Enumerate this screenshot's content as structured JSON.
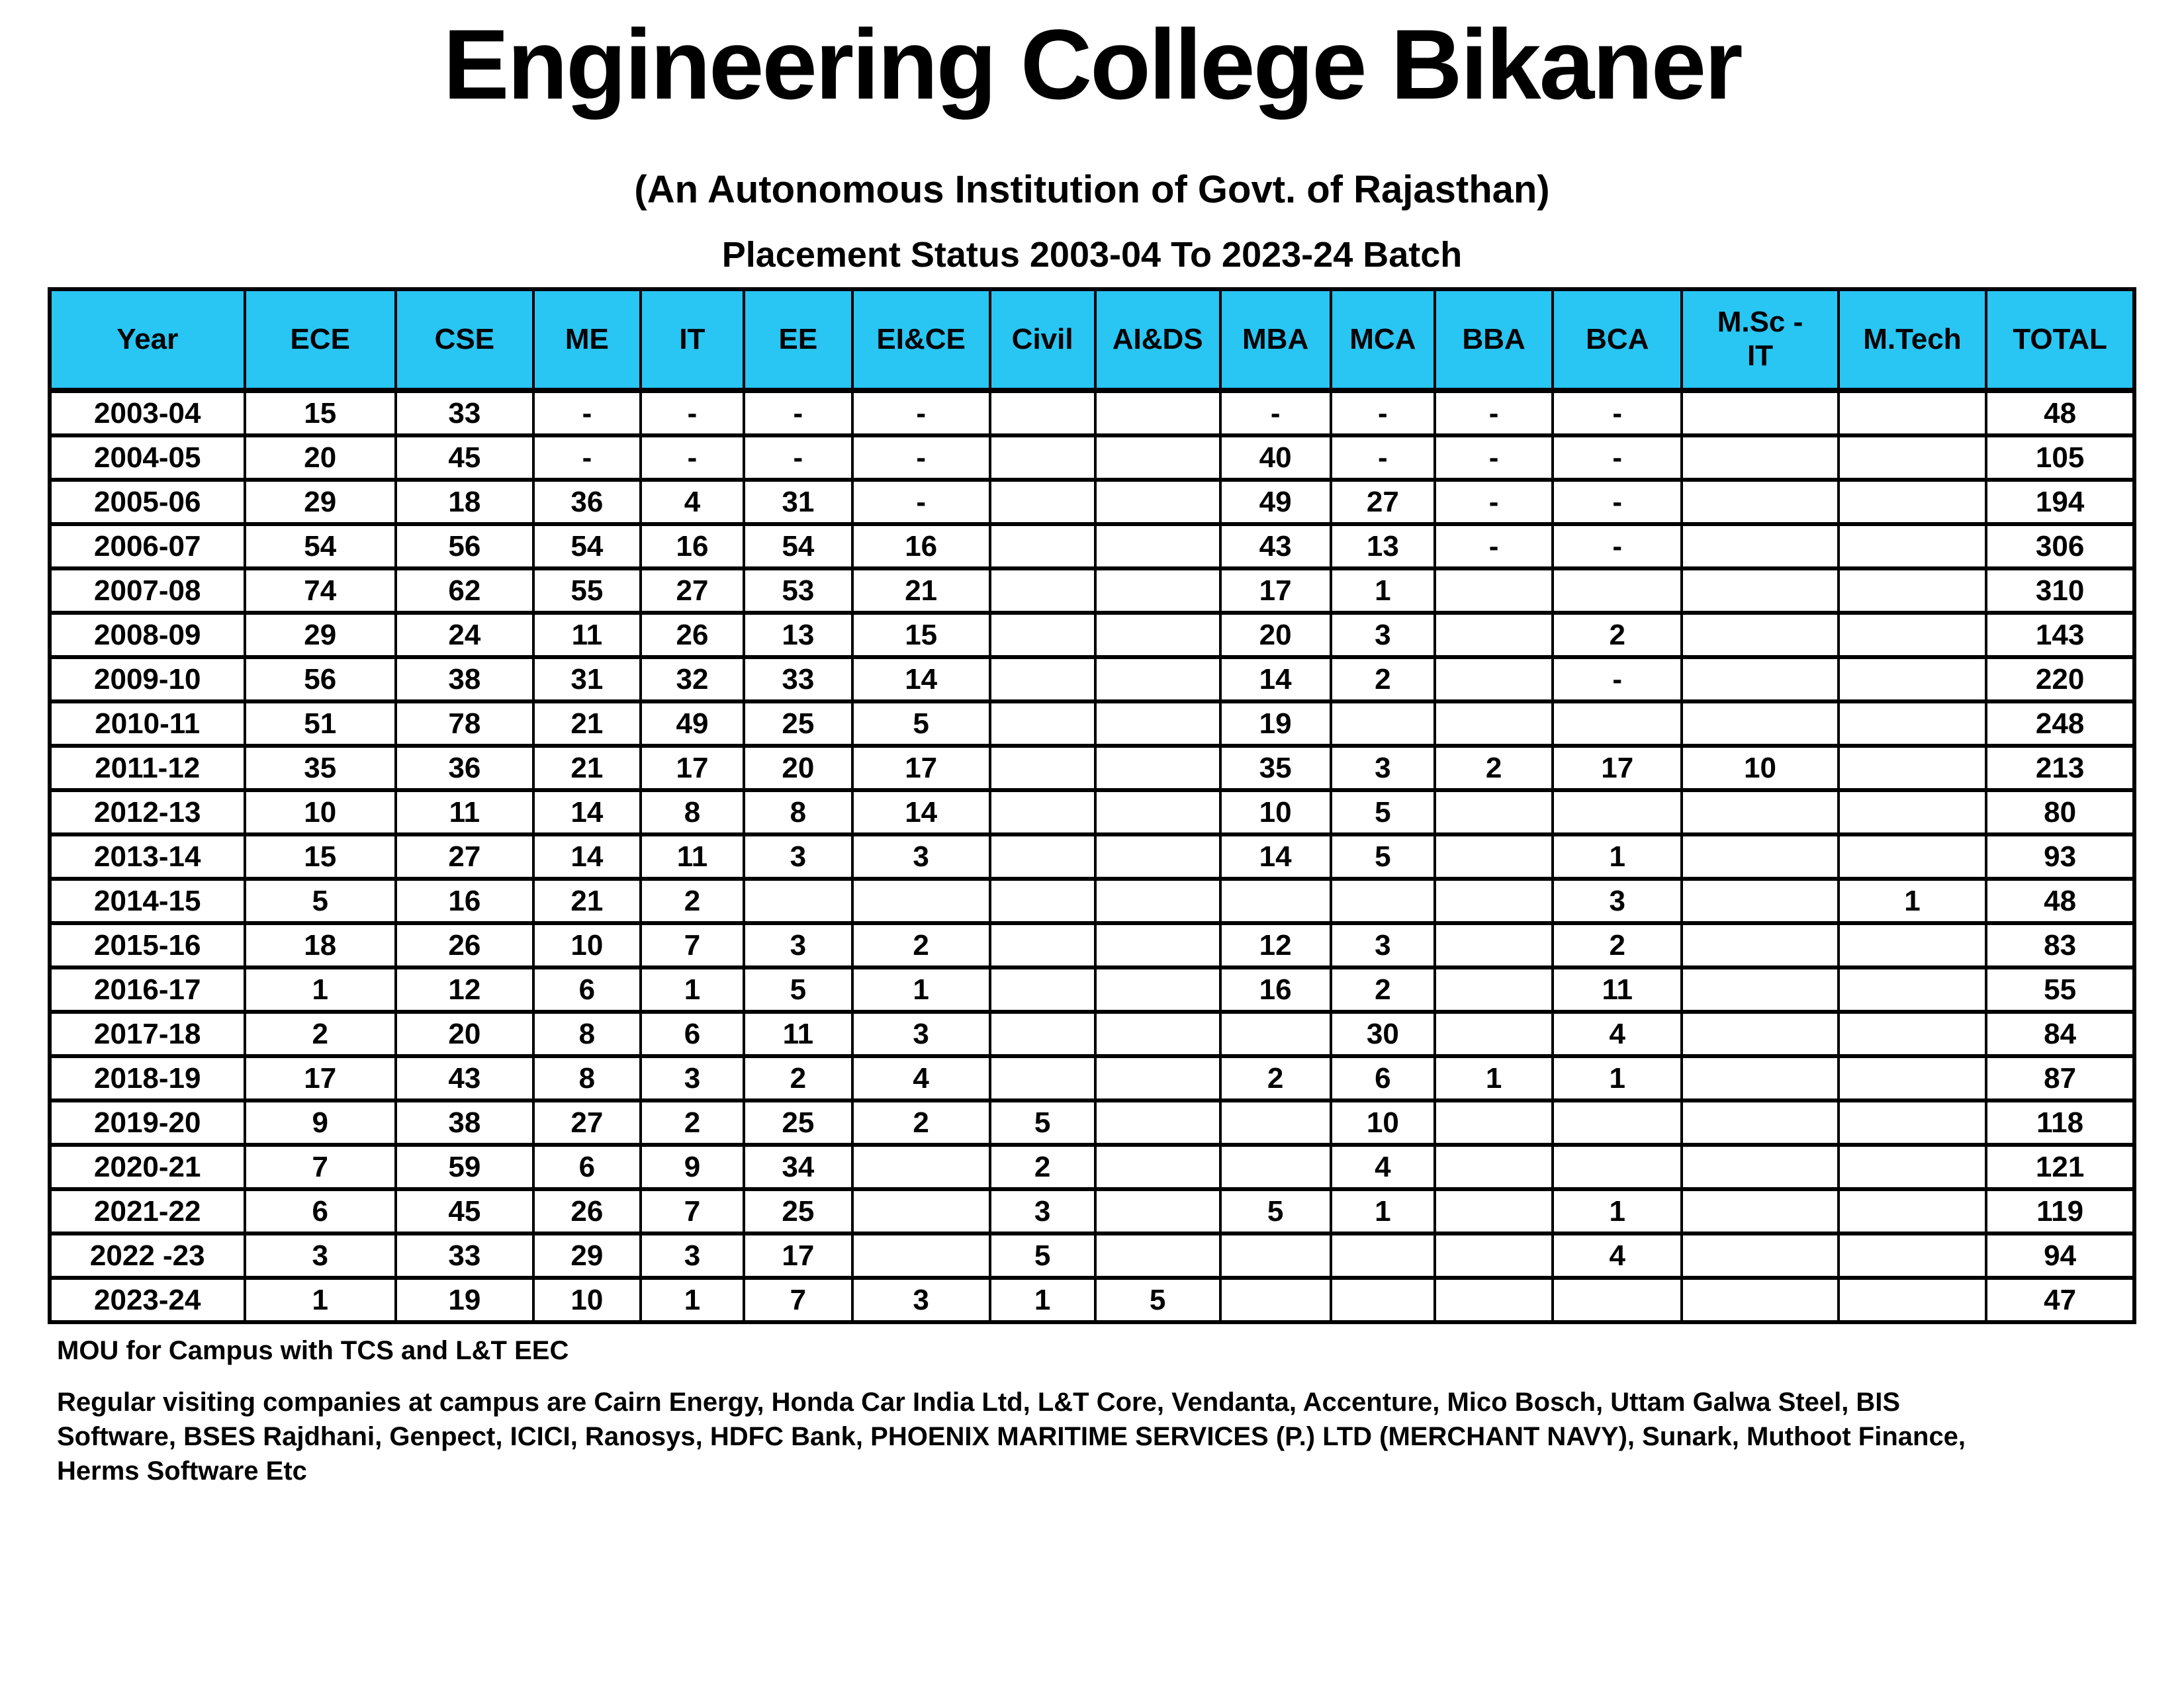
{
  "title": "Engineering College Bikaner",
  "subtitle": "(An Autonomous Institution of Govt. of Rajasthan)",
  "caption": "Placement Status 2003-04 To 2023-24 Batch",
  "table": {
    "columns": [
      "Year",
      "ECE",
      "CSE",
      "ME",
      "IT",
      "EE",
      "EI&CE",
      "Civil",
      "AI&DS",
      "MBA",
      "MCA",
      "BBA",
      "BCA",
      "M.Sc -\nIT",
      "M.Tech",
      "TOTAL"
    ],
    "rows": [
      [
        "2003-04",
        "15",
        "33",
        "-",
        "-",
        "-",
        "-",
        "",
        "",
        "-",
        "-",
        "-",
        "-",
        "",
        "",
        "48"
      ],
      [
        "2004-05",
        "20",
        "45",
        "-",
        "-",
        "-",
        "-",
        "",
        "",
        "40",
        "-",
        "-",
        "-",
        "",
        "",
        "105"
      ],
      [
        "2005-06",
        "29",
        "18",
        "36",
        "4",
        "31",
        "-",
        "",
        "",
        "49",
        "27",
        "-",
        "-",
        "",
        "",
        "194"
      ],
      [
        "2006-07",
        "54",
        "56",
        "54",
        "16",
        "54",
        "16",
        "",
        "",
        "43",
        "13",
        "-",
        "-",
        "",
        "",
        "306"
      ],
      [
        "2007-08",
        "74",
        "62",
        "55",
        "27",
        "53",
        "21",
        "",
        "",
        "17",
        "1",
        "",
        "",
        "",
        "",
        "310"
      ],
      [
        "2008-09",
        "29",
        "24",
        "11",
        "26",
        "13",
        "15",
        "",
        "",
        "20",
        "3",
        "",
        "2",
        "",
        "",
        "143"
      ],
      [
        "2009-10",
        "56",
        "38",
        "31",
        "32",
        "33",
        "14",
        "",
        "",
        "14",
        "2",
        "",
        "-",
        "",
        "",
        "220"
      ],
      [
        "2010-11",
        "51",
        "78",
        "21",
        "49",
        "25",
        "5",
        "",
        "",
        "19",
        "",
        "",
        "",
        "",
        "",
        "248"
      ],
      [
        "2011-12",
        "35",
        "36",
        "21",
        "17",
        "20",
        "17",
        "",
        "",
        "35",
        "3",
        "2",
        "17",
        "10",
        "",
        "213"
      ],
      [
        "2012-13",
        "10",
        "11",
        "14",
        "8",
        "8",
        "14",
        "",
        "",
        "10",
        "5",
        "",
        "",
        "",
        "",
        "80"
      ],
      [
        "2013-14",
        "15",
        "27",
        "14",
        "11",
        "3",
        "3",
        "",
        "",
        "14",
        "5",
        "",
        "1",
        "",
        "",
        "93"
      ],
      [
        "2014-15",
        "5",
        "16",
        "21",
        "2",
        "",
        "",
        "",
        "",
        "",
        "",
        "",
        "3",
        "",
        "1",
        "48"
      ],
      [
        "2015-16",
        "18",
        "26",
        "10",
        "7",
        "3",
        "2",
        "",
        "",
        "12",
        "3",
        "",
        "2",
        "",
        "",
        "83"
      ],
      [
        "2016-17",
        "1",
        "12",
        "6",
        "1",
        "5",
        "1",
        "",
        "",
        "16",
        "2",
        "",
        "11",
        "",
        "",
        "55"
      ],
      [
        "2017-18",
        "2",
        "20",
        "8",
        "6",
        "11",
        "3",
        "",
        "",
        "",
        "30",
        "",
        "4",
        "",
        "",
        "84"
      ],
      [
        "2018-19",
        "17",
        "43",
        "8",
        "3",
        "2",
        "4",
        "",
        "",
        "2",
        "6",
        "1",
        "1",
        "",
        "",
        "87"
      ],
      [
        "2019-20",
        "9",
        "38",
        "27",
        "2",
        "25",
        "2",
        "5",
        "",
        "",
        "10",
        "",
        "",
        "",
        "",
        "118"
      ],
      [
        "2020-21",
        "7",
        "59",
        "6",
        "9",
        "34",
        "",
        "2",
        "",
        "",
        "4",
        "",
        "",
        "",
        "",
        "121"
      ],
      [
        "2021-22",
        "6",
        "45",
        "26",
        "7",
        "25",
        "",
        "3",
        "",
        "5",
        "1",
        "",
        "1",
        "",
        "",
        "119"
      ],
      [
        "2022 -23",
        "3",
        "33",
        "29",
        "3",
        "17",
        "",
        "5",
        "",
        "",
        "",
        "",
        "4",
        "",
        "",
        "94"
      ],
      [
        "2023-24",
        "1",
        "19",
        "10",
        "1",
        "7",
        "3",
        "1",
        "5",
        "",
        "",
        "",
        "",
        "",
        "",
        "47"
      ]
    ]
  },
  "notes": {
    "mou": "MOU for Campus with TCS and L&T EEC",
    "companies": "Regular visiting companies at campus are Cairn Energy, Honda Car India Ltd, L&T Core, Vendanta, Accenture, Mico Bosch, Uttam Galwa Steel, BIS\nSoftware, BSES Rajdhani, Genpect, ICICI,  Ranosys,  HDFC Bank, PHOENIX MARITIME SERVICES (P.) LTD (MERCHANT NAVY), Sunark, Muthoot Finance,\nHerms Software Etc"
  },
  "colors": {
    "header_background": "#29c5f3",
    "border": "#000000",
    "text": "#000000",
    "page_background": "#ffffff"
  }
}
